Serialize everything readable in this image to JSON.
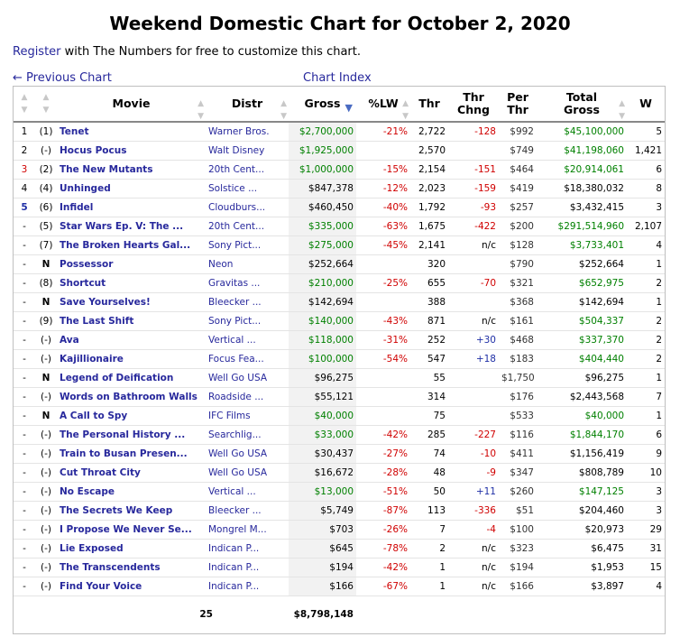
{
  "page": {
    "title": "Weekend Domestic Chart for October 2, 2020",
    "register_link": "Register",
    "register_text": " with The Numbers for free to customize this chart.",
    "prev_chart": "← Previous Chart",
    "chart_index": "Chart Index"
  },
  "table": {
    "headers": {
      "movie": "Movie",
      "distr": "Distr",
      "gross": "Gross",
      "lw": "%LW",
      "thr": "Thr",
      "thr_chng_1": "Thr",
      "thr_chng_2": "Chng",
      "per_thr_1": "Per",
      "per_thr_2": "Thr",
      "total_1": "Total",
      "total_2": "Gross",
      "w": "W"
    },
    "rows": [
      {
        "rank": "1",
        "prev": "(1)",
        "movie": "Tenet",
        "distr": "Warner Bros.",
        "gross": "$2,700,000",
        "lw": "-21%",
        "thr": "2,722",
        "chng": "-128",
        "per": "$992",
        "total": "$45,100,000",
        "w": "5",
        "gross_color": "green",
        "total_color": "green",
        "rank_style": "",
        "chng_color": "red"
      },
      {
        "rank": "2",
        "prev": "(-)",
        "movie": "Hocus Pocus",
        "distr": "Walt Disney",
        "gross": "$1,925,000",
        "lw": "",
        "thr": "2,570",
        "chng": "",
        "per": "$749",
        "total": "$41,198,060",
        "w": "1,421",
        "gross_color": "green",
        "total_color": "green",
        "rank_style": "",
        "chng_color": ""
      },
      {
        "rank": "3",
        "prev": "(2)",
        "movie": "The New Mutants",
        "distr": "20th Cent...",
        "gross": "$1,000,000",
        "lw": "-15%",
        "thr": "2,154",
        "chng": "-151",
        "per": "$464",
        "total": "$20,914,061",
        "w": "6",
        "gross_color": "green",
        "total_color": "green",
        "rank_style": "red",
        "chng_color": "red"
      },
      {
        "rank": "4",
        "prev": "(4)",
        "movie": "Unhinged",
        "distr": "Solstice ...",
        "gross": "$847,378",
        "lw": "-12%",
        "thr": "2,023",
        "chng": "-159",
        "per": "$419",
        "total": "$18,380,032",
        "w": "8",
        "gross_color": "",
        "total_color": "",
        "rank_style": "",
        "chng_color": "red"
      },
      {
        "rank": "5",
        "prev": "(6)",
        "movie": "Infidel",
        "distr": "Cloudburs...",
        "gross": "$460,450",
        "lw": "-40%",
        "thr": "1,792",
        "chng": "-93",
        "per": "$257",
        "total": "$3,432,415",
        "w": "3",
        "gross_color": "",
        "total_color": "",
        "rank_style": "blue",
        "chng_color": "red"
      },
      {
        "rank": "-",
        "prev": "(5)",
        "movie": "Star Wars Ep. V: The ...",
        "distr": "20th Cent...",
        "gross": "$335,000",
        "lw": "-63%",
        "thr": "1,675",
        "chng": "-422",
        "per": "$200",
        "total": "$291,514,960",
        "w": "2,107",
        "gross_color": "green",
        "total_color": "green",
        "rank_style": "",
        "chng_color": "red"
      },
      {
        "rank": "-",
        "prev": "(7)",
        "movie": "The Broken Hearts Gal...",
        "distr": "Sony Pict...",
        "gross": "$275,000",
        "lw": "-45%",
        "thr": "2,141",
        "chng": "n/c",
        "per": "$128",
        "total": "$3,733,401",
        "w": "4",
        "gross_color": "green",
        "total_color": "green",
        "rank_style": "",
        "chng_color": ""
      },
      {
        "rank": "-",
        "prev": "N",
        "movie": "Possessor",
        "distr": "Neon",
        "gross": "$252,664",
        "lw": "",
        "thr": "320",
        "chng": "",
        "per": "$790",
        "total": "$252,664",
        "w": "1",
        "gross_color": "",
        "total_color": "",
        "rank_style": "",
        "chng_color": ""
      },
      {
        "rank": "-",
        "prev": "(8)",
        "movie": "Shortcut",
        "distr": "Gravitas ...",
        "gross": "$210,000",
        "lw": "-25%",
        "thr": "655",
        "chng": "-70",
        "per": "$321",
        "total": "$652,975",
        "w": "2",
        "gross_color": "green",
        "total_color": "green",
        "rank_style": "",
        "chng_color": "red"
      },
      {
        "rank": "-",
        "prev": "N",
        "movie": "Save Yourselves!",
        "distr": "Bleecker ...",
        "gross": "$142,694",
        "lw": "",
        "thr": "388",
        "chng": "",
        "per": "$368",
        "total": "$142,694",
        "w": "1",
        "gross_color": "",
        "total_color": "",
        "rank_style": "",
        "chng_color": ""
      },
      {
        "rank": "-",
        "prev": "(9)",
        "movie": "The Last Shift",
        "distr": "Sony Pict...",
        "gross": "$140,000",
        "lw": "-43%",
        "thr": "871",
        "chng": "n/c",
        "per": "$161",
        "total": "$504,337",
        "w": "2",
        "gross_color": "green",
        "total_color": "green",
        "rank_style": "",
        "chng_color": ""
      },
      {
        "rank": "-",
        "prev": "(-)",
        "movie": "Ava",
        "distr": "Vertical ...",
        "gross": "$118,000",
        "lw": "-31%",
        "thr": "252",
        "chng": "+30",
        "per": "$468",
        "total": "$337,370",
        "w": "2",
        "gross_color": "green",
        "total_color": "green",
        "rank_style": "",
        "chng_color": "blue"
      },
      {
        "rank": "-",
        "prev": "(-)",
        "movie": "Kajillionaire",
        "distr": "Focus Fea...",
        "gross": "$100,000",
        "lw": "-54%",
        "thr": "547",
        "chng": "+18",
        "per": "$183",
        "total": "$404,440",
        "w": "2",
        "gross_color": "green",
        "total_color": "green",
        "rank_style": "",
        "chng_color": "blue"
      },
      {
        "rank": "-",
        "prev": "N",
        "movie": "Legend of Deification",
        "distr": "Well Go USA",
        "gross": "$96,275",
        "lw": "",
        "thr": "55",
        "chng": "",
        "per": "$1,750",
        "total": "$96,275",
        "w": "1",
        "gross_color": "",
        "total_color": "",
        "rank_style": "",
        "chng_color": ""
      },
      {
        "rank": "-",
        "prev": "(-)",
        "movie": "Words on Bathroom Walls",
        "distr": "Roadside ...",
        "gross": "$55,121",
        "lw": "",
        "thr": "314",
        "chng": "",
        "per": "$176",
        "total": "$2,443,568",
        "w": "7",
        "gross_color": "",
        "total_color": "",
        "rank_style": "",
        "chng_color": ""
      },
      {
        "rank": "-",
        "prev": "N",
        "movie": "A Call to Spy",
        "distr": "IFC Films",
        "gross": "$40,000",
        "lw": "",
        "thr": "75",
        "chng": "",
        "per": "$533",
        "total": "$40,000",
        "w": "1",
        "gross_color": "green",
        "total_color": "green",
        "rank_style": "",
        "chng_color": ""
      },
      {
        "rank": "-",
        "prev": "(-)",
        "movie": "The Personal History ...",
        "distr": "Searchlig...",
        "gross": "$33,000",
        "lw": "-42%",
        "thr": "285",
        "chng": "-227",
        "per": "$116",
        "total": "$1,844,170",
        "w": "6",
        "gross_color": "green",
        "total_color": "green",
        "rank_style": "",
        "chng_color": "red"
      },
      {
        "rank": "-",
        "prev": "(-)",
        "movie": "Train to Busan Presen...",
        "distr": "Well Go USA",
        "gross": "$30,437",
        "lw": "-27%",
        "thr": "74",
        "chng": "-10",
        "per": "$411",
        "total": "$1,156,419",
        "w": "9",
        "gross_color": "",
        "total_color": "",
        "rank_style": "",
        "chng_color": "red"
      },
      {
        "rank": "-",
        "prev": "(-)",
        "movie": "Cut Throat City",
        "distr": "Well Go USA",
        "gross": "$16,672",
        "lw": "-28%",
        "thr": "48",
        "chng": "-9",
        "per": "$347",
        "total": "$808,789",
        "w": "10",
        "gross_color": "",
        "total_color": "",
        "rank_style": "",
        "chng_color": "red"
      },
      {
        "rank": "-",
        "prev": "(-)",
        "movie": "No Escape",
        "distr": "Vertical ...",
        "gross": "$13,000",
        "lw": "-51%",
        "thr": "50",
        "chng": "+11",
        "per": "$260",
        "total": "$147,125",
        "w": "3",
        "gross_color": "green",
        "total_color": "green",
        "rank_style": "",
        "chng_color": "blue"
      },
      {
        "rank": "-",
        "prev": "(-)",
        "movie": "The Secrets We Keep",
        "distr": "Bleecker ...",
        "gross": "$5,749",
        "lw": "-87%",
        "thr": "113",
        "chng": "-336",
        "per": "$51",
        "total": "$204,460",
        "w": "3",
        "gross_color": "",
        "total_color": "",
        "rank_style": "",
        "chng_color": "red"
      },
      {
        "rank": "-",
        "prev": "(-)",
        "movie": "I Propose We Never Se...",
        "distr": "Mongrel M...",
        "gross": "$703",
        "lw": "-26%",
        "thr": "7",
        "chng": "-4",
        "per": "$100",
        "total": "$20,973",
        "w": "29",
        "gross_color": "",
        "total_color": "",
        "rank_style": "",
        "chng_color": "red"
      },
      {
        "rank": "-",
        "prev": "(-)",
        "movie": "Lie Exposed",
        "distr": "Indican P...",
        "gross": "$645",
        "lw": "-78%",
        "thr": "2",
        "chng": "n/c",
        "per": "$323",
        "total": "$6,475",
        "w": "31",
        "gross_color": "",
        "total_color": "",
        "rank_style": "",
        "chng_color": ""
      },
      {
        "rank": "-",
        "prev": "(-)",
        "movie": "The Transcendents",
        "distr": "Indican P...",
        "gross": "$194",
        "lw": "-42%",
        "thr": "1",
        "chng": "n/c",
        "per": "$194",
        "total": "$1,953",
        "w": "15",
        "gross_color": "",
        "total_color": "",
        "rank_style": "",
        "chng_color": ""
      },
      {
        "rank": "-",
        "prev": "(-)",
        "movie": "Find Your Voice",
        "distr": "Indican P...",
        "gross": "$166",
        "lw": "-67%",
        "thr": "1",
        "chng": "n/c",
        "per": "$166",
        "total": "$3,897",
        "w": "4",
        "gross_color": "",
        "total_color": "",
        "rank_style": "",
        "chng_color": ""
      }
    ],
    "footer": {
      "count": "25",
      "total_gross": "$8,798,148"
    }
  },
  "colors": {
    "link": "#27289c",
    "green": "#008000",
    "red": "#d00000",
    "blue": "#1f2fa6"
  }
}
